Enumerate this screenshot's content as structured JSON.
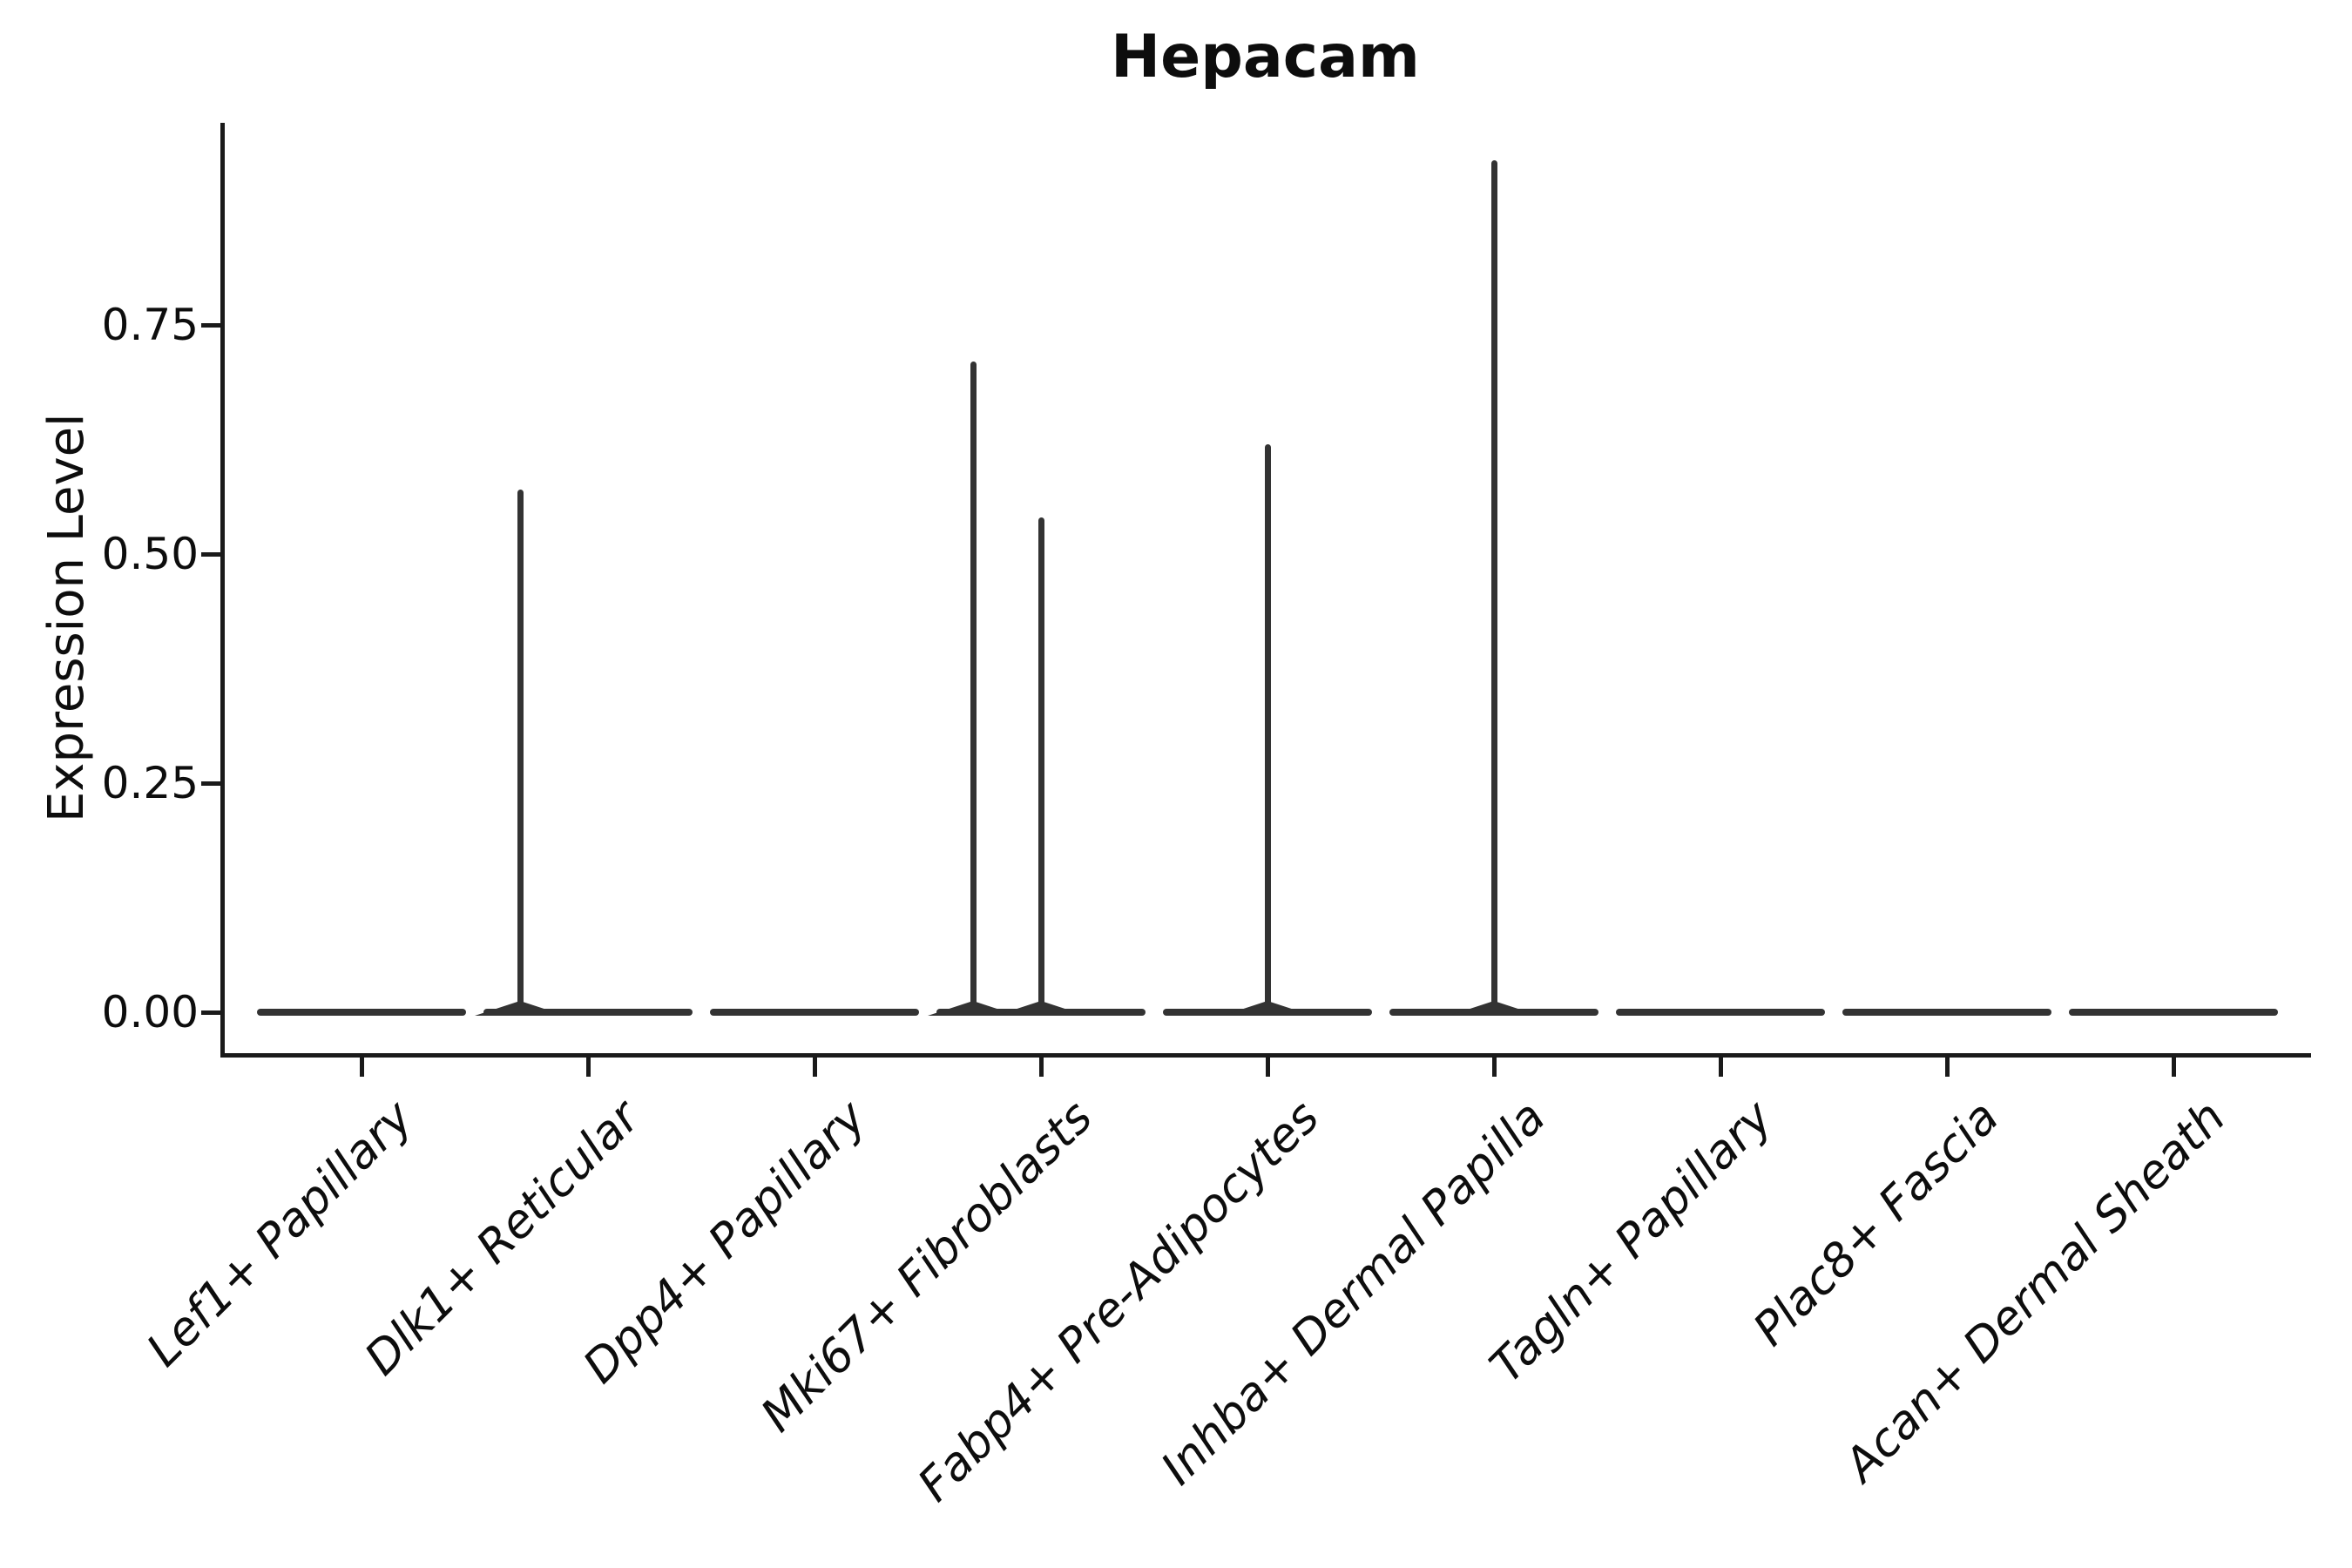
{
  "title": "Hepacam",
  "y_axis": {
    "label": "Expression Level",
    "tick_labels": [
      "0.00",
      "0.25",
      "0.50",
      "0.75"
    ]
  },
  "x_axis": {
    "categories": [
      "Lef1+ Papillary",
      "Dlk1+ Reticular",
      "Dpp4+ Papillary",
      "Mki67+ Fibroblasts",
      "Fabp4+ Pre-Adipocytes",
      "Inhba+ Dermal Papilla",
      "Tagln+ Papillary",
      "Plac8+ Fascia",
      "Acan+ Dermal Sheath"
    ]
  },
  "colors": {
    "stroke": "#333333",
    "axis": "#1a1a1a",
    "text": "#0d0d0d",
    "background": "#ffffff"
  },
  "chart_data": {
    "type": "violin",
    "title": "Hepacam",
    "xlabel": "",
    "ylabel": "Expression Level",
    "yticks": [
      0.0,
      0.25,
      0.5,
      0.75
    ],
    "ylim": [
      -0.047,
      0.97
    ],
    "grid": false,
    "legend": false,
    "x_label_rotation_deg": 45,
    "x_label_style": "italic",
    "categories": [
      "Lef1+ Papillary",
      "Dlk1+ Reticular",
      "Dpp4+ Papillary",
      "Mki67+ Fibroblasts",
      "Fabp4+ Pre-Adipocytes",
      "Inhba+ Dermal Papilla",
      "Tagln+ Papillary",
      "Plac8+ Fascia",
      "Acan+ Dermal Sheath"
    ],
    "violins": [
      {
        "category": "Lef1+ Papillary",
        "bulk_value": 0,
        "spikes": []
      },
      {
        "category": "Dlk1+ Reticular",
        "bulk_value": 0,
        "spikes": [
          {
            "value": 0.57,
            "x_offset": -0.3
          }
        ]
      },
      {
        "category": "Dpp4+ Papillary",
        "bulk_value": 0,
        "spikes": []
      },
      {
        "category": "Mki67+ Fibroblasts",
        "bulk_value": 0,
        "spikes": [
          {
            "value": 0.71,
            "x_offset": -0.3
          },
          {
            "value": 0.54,
            "x_offset": 0
          }
        ]
      },
      {
        "category": "Fabp4+ Pre-Adipocytes",
        "bulk_value": 0,
        "spikes": [
          {
            "value": 0.62,
            "x_offset": 0
          }
        ]
      },
      {
        "category": "Inhba+ Dermal Papilla",
        "bulk_value": 0,
        "spikes": [
          {
            "value": 0.93,
            "x_offset": 0
          }
        ]
      },
      {
        "category": "Tagln+ Papillary",
        "bulk_value": 0,
        "spikes": []
      },
      {
        "category": "Plac8+ Fascia",
        "bulk_value": 0,
        "spikes": []
      },
      {
        "category": "Acan+ Dermal Sheath",
        "bulk_value": 0,
        "spikes": []
      }
    ]
  }
}
